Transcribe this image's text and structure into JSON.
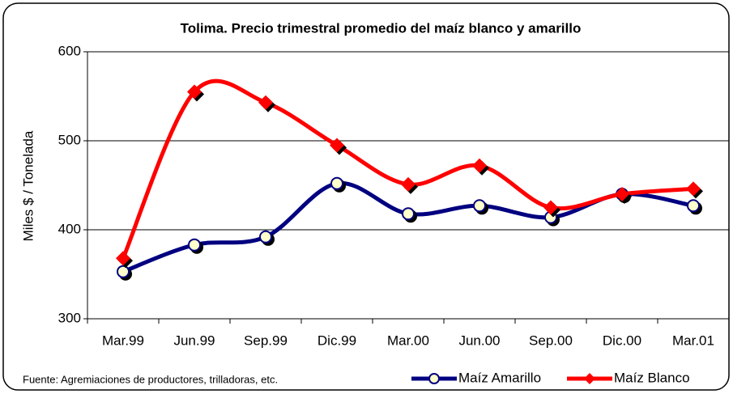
{
  "chart_data": {
    "type": "line",
    "title": "Tolima. Precio trimestral promedio del maíz blanco y amarillo",
    "y_label": "Miles $ / Tonelada",
    "note": "Fuente: Agremiaciones de productores, trilladoras, etc.",
    "categories": [
      "Mar.99",
      "Jun.99",
      "Sep.99",
      "Dic.99",
      "Mar.00",
      "Jun.00",
      "Sep.00",
      "Dic.00",
      "Mar.01"
    ],
    "series": [
      {
        "name": "Maíz Amarillo",
        "color": "#000080",
        "values": [
          353,
          383,
          392,
          452,
          418,
          427,
          414,
          440,
          427
        ]
      },
      {
        "name": "Maíz Blanco",
        "color": "#ff0000",
        "values": [
          368,
          555,
          543,
          495,
          451,
          472,
          425,
          440,
          446
        ]
      }
    ],
    "ylim": [
      300,
      600
    ],
    "yticks": [
      300,
      400,
      500,
      600
    ],
    "grid": true,
    "legend": "bottom"
  }
}
